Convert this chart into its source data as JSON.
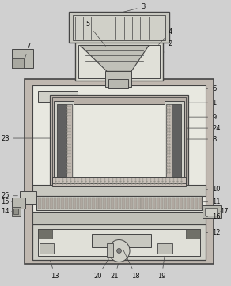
{
  "fig_width": 2.92,
  "fig_height": 3.62,
  "dpi": 100,
  "bg_color": "#d0d0d0",
  "line_color": "#444444",
  "white": "#f0f0f0",
  "gray_light": "#c8c8c8",
  "gray_mid": "#aaaaaa",
  "gray_dark": "#888888"
}
